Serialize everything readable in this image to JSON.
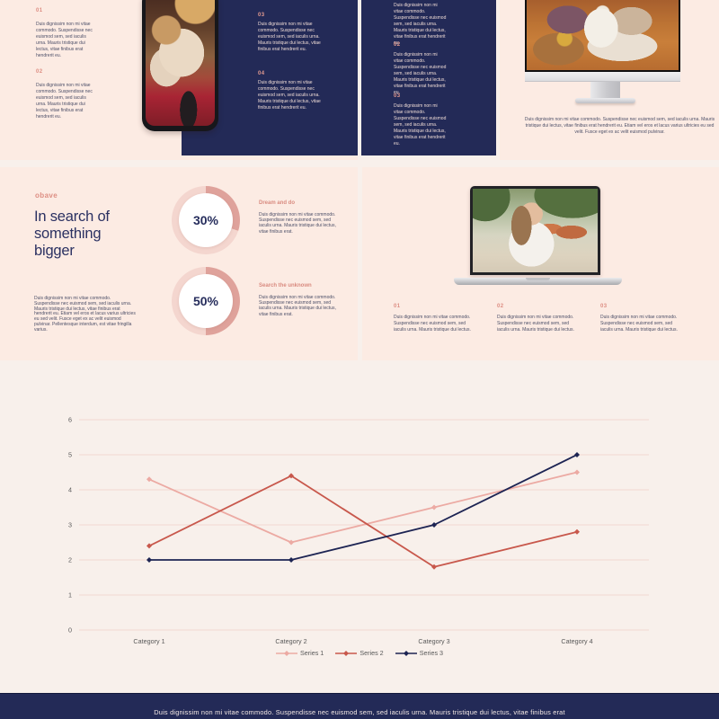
{
  "colors": {
    "page_bg": "#f8f0eb",
    "slide_bg": "#fcebe3",
    "navy": "#232a57",
    "salmon": "#dd8e83",
    "heading_navy": "#2b3162",
    "donut_arc": "#dfa29b",
    "donut_ring": "#f4d6cf",
    "grid": "#f2d8d0",
    "axis_text": "#595959"
  },
  "row1": {
    "left_items": [
      {
        "num": "01",
        "text": "Duis dignissim non mi vitae commodo. Suspendisse nec euismod sem, sed iaculis urna. Mauris tristique dui lectus, vitae finibus erat hendrerit eu."
      },
      {
        "num": "02",
        "text": "Duis dignissim non mi vitae commodo. Suspendisse nec euismod sem, sed iaculis urna. Mauris tristique dui lectus, vitae finibus erat hendrerit eu."
      }
    ],
    "panel_items": [
      {
        "num": "03",
        "text": "Duis dignissim non mi vitae commodo. Suspendisse nec euismod sem, sed iaculis urna. Mauris tristique dui lectus, vitae finibus erat hendrerit eu."
      },
      {
        "num": "04",
        "text": "Duis dignissim non mi vitae commodo. Suspendisse nec euismod sem, sed iaculis urna. Mauris tristique dui lectus, vitae finibus erat hendrerit eu."
      }
    ],
    "navy_slide_items": [
      {
        "num": "",
        "text": "Duis dignissim non mi vitae commodo. Suspendisse nec euismod sem, sed iaculis urna. Mauris tristique dui lectus, vitae finibus erat hendrerit eu."
      },
      {
        "num": "02",
        "text": "Duis dignissim non mi vitae commodo. Suspendisse nec euismod sem, sed iaculis urna. Mauris tristique dui lectus, vitae finibus erat hendrerit eu."
      },
      {
        "num": "03",
        "text": "Duis dignissim non mi vitae commodo. Suspendisse nec euismod sem, sed iaculis urna. Mauris tristique dui lectus, vitae finibus erat hendrerit eu."
      }
    ],
    "imac_caption": "Duis dignissim non mi vitae commodo. Suspendisse nec euismod sem, sed iaculis urna. Mauris tristique dui lectus, vitae finibus erat hendrerit eu. Etiam vel eros et lacus varius ultricies eu sed velit. Fusce eget ex ac velit euismod pulvinar."
  },
  "row2": {
    "brand": "obave",
    "heading": "In search of something bigger",
    "body": "Duis dignissim non mi vitae commodo. Suspendisse nec euismod sem, sed iaculis urna. Mauris tristique dui lectus, vitae finibus erat hendrerit eu. Etiam vel eros et lacus varius ultricies eu sed velit. Fusce eget ex ac velit euismod pulvinar. Pellentesque interdum, est vitae fringilla varius.",
    "stats": [
      {
        "value": "30%",
        "pct": 30,
        "title": "Dream and do",
        "text": "Duis dignissim non mi vitae commodo. Suspendisse nec euismod sem, sed iaculis urna. Mauris tristique dui lectus, vitae finibus erat."
      },
      {
        "value": "50%",
        "pct": 50,
        "title": "Search the unknown",
        "text": "Duis dignissim non mi vitae commodo. Suspendisse nec euismod sem, sed iaculis urna. Mauris tristique dui lectus, vitae finibus erat."
      }
    ],
    "laptop_items": [
      {
        "num": "01",
        "text": "Duis dignissim non mi vitae commodo. Suspendisse nec euismod sem, sed iaculis urna. Mauris tristique dui lectus."
      },
      {
        "num": "02",
        "text": "Duis dignissim non mi vitae commodo. Suspendisse nec euismod sem, sed iaculis urna. Mauris tristique dui lectus."
      },
      {
        "num": "03",
        "text": "Duis dignissim non mi vitae commodo. Suspendisse nec euismod sem, sed iaculis urna. Mauris tristique dui lectus."
      }
    ]
  },
  "chart_data": {
    "type": "line",
    "categories": [
      "Category 1",
      "Category 2",
      "Category 3",
      "Category 4"
    ],
    "series": [
      {
        "name": "Series 1",
        "values": [
          4.3,
          2.5,
          3.5,
          4.5
        ],
        "color": "#ecaaa3"
      },
      {
        "name": "Series 2",
        "values": [
          2.4,
          4.4,
          1.8,
          2.8
        ],
        "color": "#c8584c"
      },
      {
        "name": "Series 3",
        "values": [
          2,
          2,
          3,
          5
        ],
        "color": "#1d2453"
      }
    ],
    "ylim": [
      0,
      6
    ],
    "yticks": [
      0,
      1,
      2,
      3,
      4,
      5,
      6
    ],
    "grid": true,
    "marker": "diamond",
    "legend_position": "bottom"
  },
  "footer": {
    "text": "Duis dignissim non mi vitae commodo. Suspendisse nec euismod sem, sed iaculis urna. Mauris tristique dui lectus, vitae finibus erat"
  }
}
